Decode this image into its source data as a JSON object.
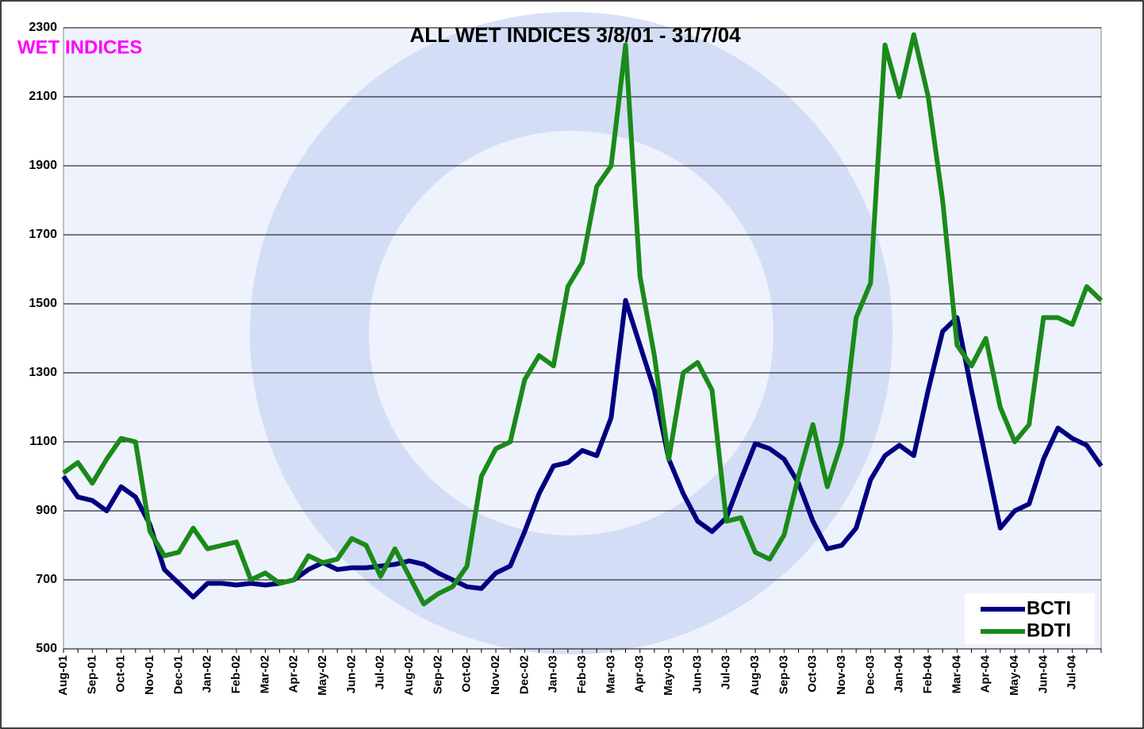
{
  "chart_data": {
    "type": "line",
    "title": "ALL WET INDICES 3/8/01 - 31/7/04",
    "subtitle": "WET INDICES",
    "categories": [
      "Aug-01",
      null,
      "Sep-01",
      null,
      "Oct-01",
      null,
      "Nov-01",
      null,
      "Dec-01",
      null,
      "Jan-02",
      null,
      "Feb-02",
      null,
      "Mar-02",
      null,
      "Apr-02",
      null,
      "May-02",
      null,
      "Jun-02",
      null,
      "Jul-02",
      null,
      "Aug-02",
      null,
      "Sep-02",
      null,
      "Oct-02",
      null,
      "Nov-02",
      null,
      "Dec-02",
      null,
      "Jan-03",
      null,
      "Feb-03",
      null,
      "Mar-03",
      null,
      "Apr-03",
      null,
      "May-03",
      null,
      "Jun-03",
      null,
      "Jul-03",
      null,
      "Aug-03",
      null,
      "Sep-03",
      null,
      "Oct-03",
      null,
      "Nov-03",
      null,
      "Dec-03",
      null,
      "Jan-04",
      null,
      "Feb-04",
      null,
      "Mar-04",
      null,
      "Apr-04",
      null,
      "May-04",
      null,
      "Jun-04",
      null,
      "Jul-04",
      null,
      null
    ],
    "series": [
      {
        "name": "BCTI",
        "color": "#000080",
        "values": [
          1000,
          940,
          930,
          900,
          970,
          940,
          860,
          730,
          690,
          650,
          690,
          690,
          685,
          690,
          685,
          690,
          700,
          730,
          750,
          730,
          735,
          735,
          740,
          745,
          755,
          745,
          720,
          700,
          680,
          675,
          720,
          740,
          840,
          950,
          1030,
          1040,
          1075,
          1060,
          1170,
          1510,
          1380,
          1250,
          1050,
          950,
          870,
          840,
          880,
          990,
          1095,
          1080,
          1050,
          980,
          870,
          790,
          800,
          850,
          990,
          1060,
          1090,
          1060,
          1250,
          1420,
          1460,
          1250,
          1050,
          850,
          900,
          920,
          1050,
          1140,
          1110,
          1090,
          1030
        ]
      },
      {
        "name": "BDTI",
        "color": "#1a8a1a",
        "values": [
          1010,
          1040,
          980,
          1050,
          1110,
          1100,
          840,
          770,
          780,
          850,
          790,
          800,
          810,
          700,
          720,
          690,
          700,
          770,
          750,
          760,
          820,
          800,
          710,
          790,
          710,
          630,
          660,
          680,
          740,
          1000,
          1080,
          1100,
          1280,
          1350,
          1320,
          1550,
          1620,
          1840,
          1900,
          2250,
          1580,
          1350,
          1050,
          1300,
          1330,
          1250,
          870,
          880,
          780,
          760,
          830,
          1000,
          1150,
          970,
          1100,
          1460,
          1560,
          2250,
          2100,
          2280,
          2100,
          1800,
          1380,
          1320,
          1400,
          1200,
          1100,
          1150,
          1460,
          1460,
          1440,
          1550,
          1510
        ]
      }
    ],
    "ylim": [
      500,
      2300
    ],
    "yticks": [
      500,
      700,
      900,
      1100,
      1300,
      1500,
      1700,
      1900,
      2100,
      2300
    ],
    "grid": true,
    "legend": "bottom-right"
  }
}
